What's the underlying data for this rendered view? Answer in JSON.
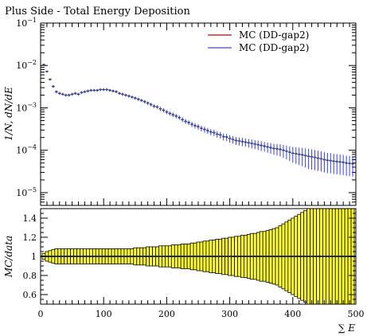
{
  "chart_data": [
    {
      "type": "scatter",
      "title": "Plus Side - Total Energy Deposition",
      "ylabel": "1/N, dN/dE",
      "yscale": "log",
      "ylim": [
        5e-06,
        0.1
      ],
      "xlim": [
        0,
        500
      ],
      "ytick_labels": [
        {
          "value": 0.1,
          "base": "10",
          "exp": "−1"
        },
        {
          "value": 0.01,
          "base": "10",
          "exp": "−2"
        },
        {
          "value": 0.001,
          "base": "10",
          "exp": "−3"
        },
        {
          "value": 0.0001,
          "base": "10",
          "exp": "−4"
        },
        {
          "value": 1e-05,
          "base": "10",
          "exp": "−5"
        }
      ],
      "legend_position": "top-right",
      "series": [
        {
          "name": "MC (DD-gap2)",
          "color": "#cc0000",
          "x": [],
          "y": []
        },
        {
          "name": "MC (DD-gap2)",
          "color": "#3344ee",
          "x": [
            5,
            10,
            15,
            20,
            25,
            30,
            35,
            40,
            45,
            50,
            55,
            60,
            65,
            70,
            75,
            80,
            85,
            90,
            95,
            100,
            105,
            110,
            115,
            120,
            125,
            130,
            135,
            140,
            145,
            150,
            155,
            160,
            165,
            170,
            175,
            180,
            185,
            190,
            195,
            200,
            205,
            210,
            215,
            220,
            225,
            230,
            235,
            240,
            245,
            250,
            255,
            260,
            265,
            270,
            275,
            280,
            285,
            290,
            295,
            300,
            305,
            310,
            315,
            320,
            325,
            330,
            335,
            340,
            345,
            350,
            355,
            360,
            365,
            370,
            375,
            380,
            385,
            390,
            395,
            400,
            405,
            410,
            415,
            420,
            425,
            430,
            435,
            440,
            445,
            450,
            455,
            460,
            465,
            470,
            475,
            480,
            485,
            490,
            495
          ],
          "y": [
            0.0105,
            0.0072,
            0.0047,
            0.0032,
            0.0024,
            0.0022,
            0.0021,
            0.002,
            0.002,
            0.0021,
            0.0022,
            0.0021,
            0.0023,
            0.0024,
            0.0025,
            0.0026,
            0.0026,
            0.0026,
            0.0027,
            0.0027,
            0.0027,
            0.0026,
            0.0025,
            0.0024,
            0.0022,
            0.0021,
            0.002,
            0.0019,
            0.0018,
            0.0017,
            0.0016,
            0.0015,
            0.0014,
            0.0013,
            0.0012,
            0.0011,
            0.00105,
            0.00095,
            0.00088,
            0.0008,
            0.00074,
            0.00069,
            0.00064,
            0.00059,
            0.00053,
            0.00048,
            0.00045,
            0.00041,
            0.00038,
            0.00036,
            0.00033,
            0.00031,
            0.00029,
            0.00027,
            0.00026,
            0.00024,
            0.00023,
            0.00021,
            0.000205,
            0.00019,
            0.00018,
            0.00017,
            0.000165,
            0.00016,
            0.000155,
            0.00015,
            0.000145,
            0.00014,
            0.000135,
            0.00013,
            0.000125,
            0.00012,
            0.000115,
            0.00011,
            0.000108,
            0.000105,
            0.0001,
            9.5e-05,
            9e-05,
            8.5e-05,
            8.3e-05,
            8e-05,
            7.8e-05,
            7.5e-05,
            7.2e-05,
            7e-05,
            6.8e-05,
            6.5e-05,
            6.3e-05,
            6e-05,
            5.8e-05,
            5.7e-05,
            5.5e-05,
            5.4e-05,
            5.3e-05,
            5.2e-05,
            5e-05,
            4.9e-05,
            4.8e-05
          ]
        }
      ]
    },
    {
      "type": "bar",
      "ylabel": "MC/data",
      "xlabel": "∑ E",
      "ylim": [
        0.5,
        1.5
      ],
      "xlim": [
        0,
        500
      ],
      "yticks": [
        0.6,
        0.8,
        1,
        1.2,
        1.4
      ],
      "ytick_labels": [
        "0.6",
        "0.8",
        "1",
        "1.2",
        "1.4"
      ],
      "xticks": [
        0,
        100,
        200,
        300,
        400,
        500
      ],
      "xtick_labels": [
        "0",
        "100",
        "200",
        "300",
        "400",
        "500"
      ],
      "band_color": "#ffff33",
      "reference_value": 1,
      "x": [
        5,
        10,
        15,
        20,
        25,
        30,
        35,
        40,
        45,
        50,
        55,
        60,
        65,
        70,
        75,
        80,
        85,
        90,
        95,
        100,
        105,
        110,
        115,
        120,
        125,
        130,
        135,
        140,
        145,
        150,
        155,
        160,
        165,
        170,
        175,
        180,
        185,
        190,
        195,
        200,
        205,
        210,
        215,
        220,
        225,
        230,
        235,
        240,
        245,
        250,
        255,
        260,
        265,
        270,
        275,
        280,
        285,
        290,
        295,
        300,
        305,
        310,
        315,
        320,
        325,
        330,
        335,
        340,
        345,
        350,
        355,
        360,
        365,
        370,
        375,
        380,
        385,
        390,
        395,
        400,
        405,
        410,
        415,
        420,
        425,
        430,
        435,
        440,
        445,
        450,
        455,
        460,
        465,
        470,
        475,
        480,
        485,
        490,
        495
      ],
      "half_widths": [
        0.03,
        0.05,
        0.06,
        0.07,
        0.08,
        0.08,
        0.08,
        0.08,
        0.08,
        0.08,
        0.08,
        0.08,
        0.08,
        0.08,
        0.08,
        0.08,
        0.08,
        0.08,
        0.08,
        0.08,
        0.08,
        0.08,
        0.08,
        0.08,
        0.08,
        0.08,
        0.08,
        0.08,
        0.08,
        0.09,
        0.09,
        0.09,
        0.09,
        0.1,
        0.1,
        0.1,
        0.1,
        0.11,
        0.11,
        0.11,
        0.11,
        0.12,
        0.12,
        0.12,
        0.13,
        0.13,
        0.13,
        0.14,
        0.14,
        0.15,
        0.15,
        0.16,
        0.16,
        0.17,
        0.17,
        0.18,
        0.18,
        0.19,
        0.19,
        0.2,
        0.2,
        0.21,
        0.21,
        0.22,
        0.22,
        0.23,
        0.24,
        0.24,
        0.25,
        0.26,
        0.26,
        0.27,
        0.28,
        0.29,
        0.3,
        0.32,
        0.34,
        0.36,
        0.38,
        0.4,
        0.42,
        0.44,
        0.46,
        0.48,
        0.5,
        0.5,
        0.5,
        0.5,
        0.5,
        0.5,
        0.5,
        0.5,
        0.5,
        0.5,
        0.5,
        0.5,
        0.5,
        0.5,
        0.5
      ]
    }
  ]
}
